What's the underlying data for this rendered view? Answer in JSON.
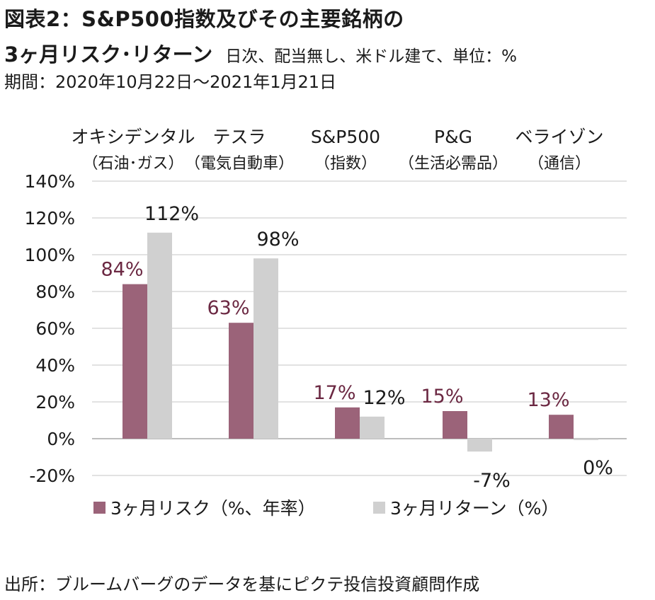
{
  "title": {
    "line1": "図表2：S&P500指数及びその主要銘柄の",
    "line2": "3ヶ月リスク･リターン",
    "note": "日次、配当無し、米ドル建て、単位：%",
    "period": "期間：2020年10月22日～2021年1月21日"
  },
  "source": "出所：ブルームバーグのデータを基にピクテ投信投資顧問作成",
  "chart_data": {
    "type": "bar",
    "categories": [
      "オキシデンタル",
      "テスラ",
      "S&P500",
      "P&G",
      "ベライゾン"
    ],
    "category_sublabels": [
      "（石油･ガス）",
      "（電気自動車）",
      "（指数）",
      "（生活必需品）",
      "（通信）"
    ],
    "series": [
      {
        "name": "3ヶ月リスク（%、年率）",
        "values": [
          84,
          63,
          17,
          15,
          13
        ],
        "labels": [
          "84%",
          "63%",
          "17%",
          "15%",
          "13%"
        ],
        "color": "#9b6379",
        "label_color": "#6b2842"
      },
      {
        "name": "3ヶ月リターン（%）",
        "values": [
          112,
          98,
          12,
          -7,
          0
        ],
        "labels": [
          "112%",
          "98%",
          "12%",
          "-7%",
          "0%"
        ],
        "color": "#d0d0d0",
        "label_color": "#1a1a1a"
      }
    ],
    "ylim": [
      -20,
      140
    ],
    "yticks": [
      140,
      120,
      100,
      80,
      60,
      40,
      20,
      0,
      -20
    ],
    "ytick_labels": [
      "140%",
      "120%",
      "100%",
      "80%",
      "60%",
      "40%",
      "20%",
      "0%",
      "-20%"
    ],
    "grid": true,
    "legend_position": "bottom-left"
  }
}
